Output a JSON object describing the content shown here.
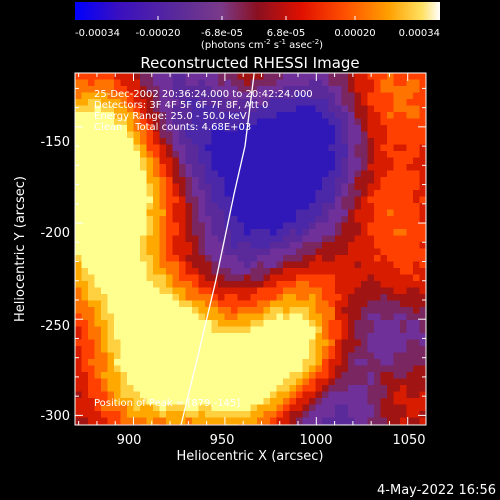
{
  "colorbar": {
    "tick_labels": [
      "-0.00034",
      "-0.00020",
      "-6.8e-05",
      "6.8e-05",
      "0.00020",
      "0.00034"
    ],
    "units_main": "(photons cm",
    "units_exp1": "-2",
    "units_mid": " s",
    "units_exp2": "-1",
    "units_end": " asec",
    "units_exp3": "-2",
    "units_close": ")"
  },
  "plot": {
    "title": "Reconstructed RHESSI Image",
    "xlabel": "Heliocentric X (arcsec)",
    "ylabel": "Heliocentric Y (arcsec)",
    "x_ticks": [
      "900",
      "950",
      "1000",
      "1050"
    ],
    "y_ticks": [
      "-150",
      "-200",
      "-250",
      "-300"
    ],
    "info_lines": [
      "25-Dec-2002 20:36:24.000 to 20:42:24.000",
      "Detectors: 3F 4F 5F 6F 7F 8F, Att 0",
      "Energy Range: 25.0 - 50.0 keV",
      "Clean    Total counts: 4.68E+03"
    ],
    "peak_label": "Position of Peak = [879,-145]"
  },
  "footer": {
    "date": "4-May-2022 16:56"
  },
  "chart_data": {
    "type": "heatmap",
    "title": "Reconstructed RHESSI Image",
    "xlabel": "Heliocentric X (arcsec)",
    "ylabel": "Heliocentric Y (arcsec)",
    "xlim": [
      868,
      1060
    ],
    "ylim": [
      -305,
      -122
    ],
    "colorbar_range": [
      -0.00034,
      0.00034
    ],
    "colormap": [
      "#0000ff",
      "#5a2a9a",
      "#7a3a8a",
      "#b21010",
      "#e32000",
      "#ff6000",
      "#ffa000",
      "#ffe040",
      "#ffffc0"
    ],
    "limb_points": [
      [
        926,
        -305
      ],
      [
        935,
        -270
      ],
      [
        945,
        -230
      ],
      [
        955,
        -185
      ],
      [
        961,
        -160
      ],
      [
        966,
        -122
      ]
    ],
    "peak": [
      879,
      -145
    ]
  }
}
